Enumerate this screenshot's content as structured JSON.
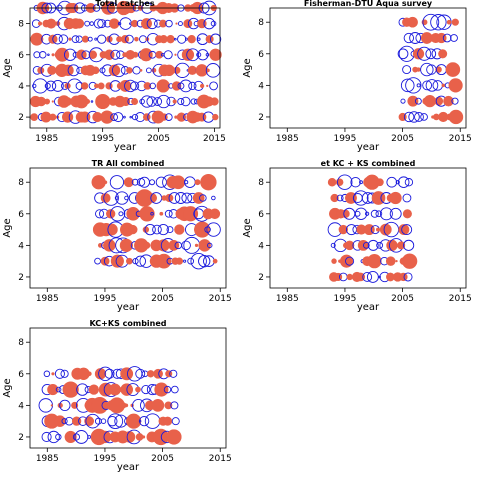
{
  "colors": {
    "negative": "#e8614a",
    "positive": "#1a1adc",
    "frame": "#000000"
  },
  "chart_data": [
    {
      "type": "scatter",
      "title": "Total catches",
      "xlabel": "year",
      "ylabel": "Age",
      "xlim": [
        1982,
        2016
      ],
      "ylim": [
        1.3,
        9.0
      ],
      "xticks": [
        1985,
        1995,
        2005,
        2015
      ],
      "yticks": [
        2,
        4,
        6,
        8
      ],
      "x_range": [
        1983,
        2015
      ],
      "ages": [
        2,
        3,
        4,
        5,
        6,
        7,
        8,
        9
      ],
      "seed": 11,
      "density": 1.0,
      "max_size": 0.6
    },
    {
      "type": "scatter",
      "title": "Fisherman-DTU Aqua survey",
      "xlabel": "year",
      "ylabel": "Age",
      "xlim": [
        1982,
        2016
      ],
      "ylim": [
        1.3,
        8.9
      ],
      "xticks": [
        1985,
        1995,
        2005,
        2015
      ],
      "yticks": [
        2,
        4,
        6,
        8
      ],
      "x_range": [
        2005,
        2014
      ],
      "ages": [
        2,
        3,
        4,
        5,
        6,
        7,
        8
      ],
      "seed": 23,
      "density": 0.9,
      "max_size": 0.85
    },
    {
      "type": "scatter",
      "title": "TR All combined",
      "xlabel": "year",
      "ylabel": "Age",
      "xlim": [
        1982,
        2016
      ],
      "ylim": [
        1.3,
        8.9
      ],
      "xticks": [
        1985,
        1995,
        2005,
        2015
      ],
      "yticks": [
        2,
        4,
        6,
        8
      ],
      "x_range": [
        1994,
        2014
      ],
      "ages": [
        3,
        4,
        5,
        6,
        7,
        8
      ],
      "seed": 37,
      "density": 0.9,
      "max_size": 0.9
    },
    {
      "type": "scatter",
      "title": "et KC + KS combined",
      "xlabel": "year",
      "ylabel": "Age",
      "xlim": [
        1982,
        2016
      ],
      "ylim": [
        1.3,
        8.9
      ],
      "xticks": [
        1985,
        1995,
        2005,
        2015
      ],
      "yticks": [
        2,
        4,
        6,
        8
      ],
      "x_range": [
        1993,
        2006
      ],
      "ages": [
        2,
        3,
        4,
        5,
        6,
        7,
        8
      ],
      "seed": 53,
      "density": 0.9,
      "max_size": 0.75
    },
    {
      "type": "scatter",
      "title": "KC+KS combined",
      "xlabel": "year",
      "ylabel": "Age",
      "xlim": [
        1982,
        2016
      ],
      "ylim": [
        1.3,
        8.9
      ],
      "xticks": [
        1985,
        1995,
        2005,
        2015
      ],
      "yticks": [
        2,
        4,
        6,
        8
      ],
      "x_range": [
        1985,
        2007
      ],
      "ages": [
        2,
        3,
        4,
        5,
        6
      ],
      "seed": 71,
      "density": 0.9,
      "max_size": 0.9
    }
  ]
}
